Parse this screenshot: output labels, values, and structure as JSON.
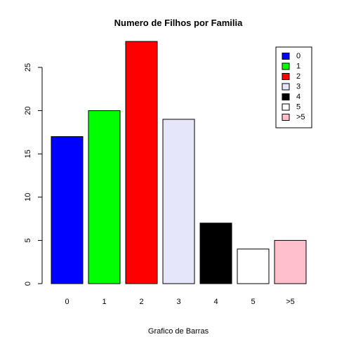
{
  "chart_data": {
    "type": "bar",
    "title": "Numero de Filhos por Familia",
    "xlabel": "Grafico de Barras",
    "ylabel": "",
    "categories": [
      "0",
      "1",
      "2",
      "3",
      "4",
      "5",
      ">5"
    ],
    "values": [
      17,
      20,
      28,
      19,
      7,
      4,
      5
    ],
    "colors": [
      "#0000ff",
      "#00ff00",
      "#ff0000",
      "#e6e6fa",
      "#000000",
      "#ffffff",
      "#ffc0cb"
    ],
    "yticks": [
      0,
      5,
      10,
      15,
      20,
      25
    ],
    "ylim": [
      0,
      28
    ],
    "grid": false,
    "legend": {
      "placement": "top-right",
      "entries": [
        "0",
        "1",
        "2",
        "3",
        "4",
        "5",
        ">5"
      ]
    }
  }
}
